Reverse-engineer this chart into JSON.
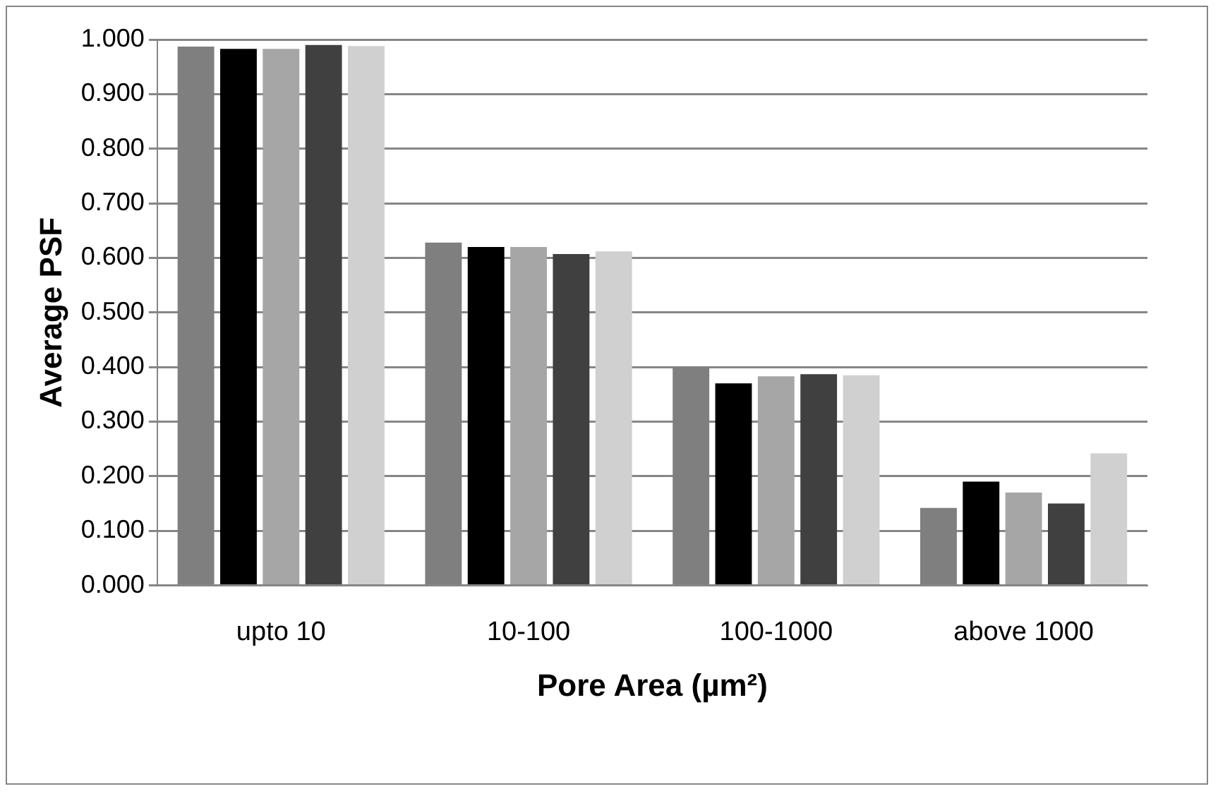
{
  "chart_data": {
    "type": "bar",
    "xlabel": "Pore Area (µm²)",
    "ylabel": "Average PSF",
    "categories": [
      "upto 10",
      "10-100",
      "100-1000",
      "above 1000"
    ],
    "series": [
      {
        "color": "#7f7f7f",
        "values": [
          0.987,
          0.628,
          0.4,
          0.142
        ]
      },
      {
        "color": "#000000",
        "values": [
          0.983,
          0.62,
          0.37,
          0.19
        ]
      },
      {
        "color": "#a6a6a6",
        "values": [
          0.983,
          0.62,
          0.383,
          0.17
        ]
      },
      {
        "color": "#404040",
        "values": [
          0.99,
          0.607,
          0.387,
          0.15
        ]
      },
      {
        "color": "#d0d0d0",
        "values": [
          0.988,
          0.612,
          0.385,
          0.242
        ]
      }
    ],
    "ylim": [
      0,
      1
    ],
    "yticks": [
      {
        "value": 0,
        "label": "0.000"
      },
      {
        "value": 0.1,
        "label": "0.100"
      },
      {
        "value": 0.2,
        "label": "0.200"
      },
      {
        "value": 0.3,
        "label": "0.300"
      },
      {
        "value": 0.4,
        "label": "0.400"
      },
      {
        "value": 0.5,
        "label": "0.500"
      },
      {
        "value": 0.6,
        "label": "0.600"
      },
      {
        "value": 0.7,
        "label": "0.700"
      },
      {
        "value": 0.8,
        "label": "0.800"
      },
      {
        "value": 0.9,
        "label": "0.900"
      },
      {
        "value": 1,
        "label": "1.000"
      }
    ],
    "grid": "y",
    "legend": false
  }
}
